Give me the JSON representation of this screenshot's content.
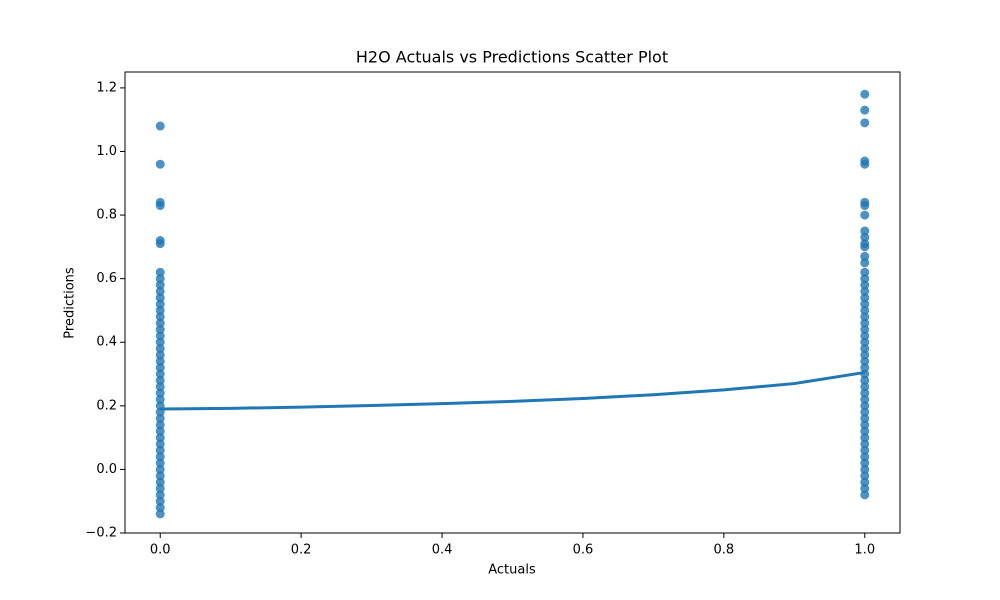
{
  "chart_data": {
    "type": "scatter",
    "title": "H2O Actuals vs Predictions Scatter Plot",
    "x_label": "Actuals",
    "y_label": "Predictions",
    "color": "#1f77b4",
    "xlim": [
      -0.05,
      1.05
    ],
    "ylim": [
      -0.2,
      1.25
    ],
    "xticks": [
      {
        "value": 0,
        "label": "0.0"
      },
      0.2,
      0.4,
      0.6,
      0.8,
      {
        "value": 1,
        "label": "1.0"
      }
    ],
    "yticks": [
      {
        "value": -0.2,
        "label": "−0.2"
      },
      {
        "value": 0,
        "label": "0.0"
      },
      0.2,
      0.4,
      0.6,
      0.8,
      {
        "value": 1,
        "label": "1.0"
      },
      1.2
    ],
    "series": [
      {
        "x": 0,
        "values": [
          1.08,
          0.96,
          0.84,
          0.83,
          0.72,
          0.71,
          0.62,
          0.6,
          0.58,
          0.56,
          0.54,
          0.52,
          0.5,
          0.48,
          0.46,
          0.44,
          0.42,
          0.4,
          0.38,
          0.36,
          0.34,
          0.32,
          0.3,
          0.28,
          0.26,
          0.24,
          0.22,
          0.2,
          0.18,
          0.16,
          0.14,
          0.12,
          0.1,
          0.08,
          0.06,
          0.04,
          0.02,
          0,
          -0.02,
          -0.04,
          -0.06,
          -0.08,
          -0.1,
          -0.12,
          -0.14
        ]
      },
      {
        "x": 1,
        "values": [
          1.18,
          1.13,
          1.09,
          0.97,
          0.96,
          0.84,
          0.83,
          0.8,
          0.75,
          0.73,
          0.71,
          0.7,
          0.67,
          0.65,
          0.62,
          0.6,
          0.58,
          0.56,
          0.54,
          0.52,
          0.5,
          0.48,
          0.46,
          0.44,
          0.42,
          0.4,
          0.38,
          0.36,
          0.34,
          0.32,
          0.3,
          0.28,
          0.26,
          0.24,
          0.22,
          0.2,
          0.18,
          0.16,
          0.14,
          0.12,
          0.1,
          0.08,
          0.06,
          0.04,
          0.02,
          0,
          -0.02,
          -0.04,
          -0.06,
          -0.08
        ]
      }
    ],
    "fit": {
      "x": [
        0,
        0.1,
        0.2,
        0.3,
        0.4,
        0.5,
        0.6,
        0.7,
        0.8,
        0.9,
        1
      ],
      "y": [
        0.19,
        0.192,
        0.196,
        0.201,
        0.207,
        0.214,
        0.223,
        0.235,
        0.25,
        0.27,
        0.305
      ]
    }
  }
}
